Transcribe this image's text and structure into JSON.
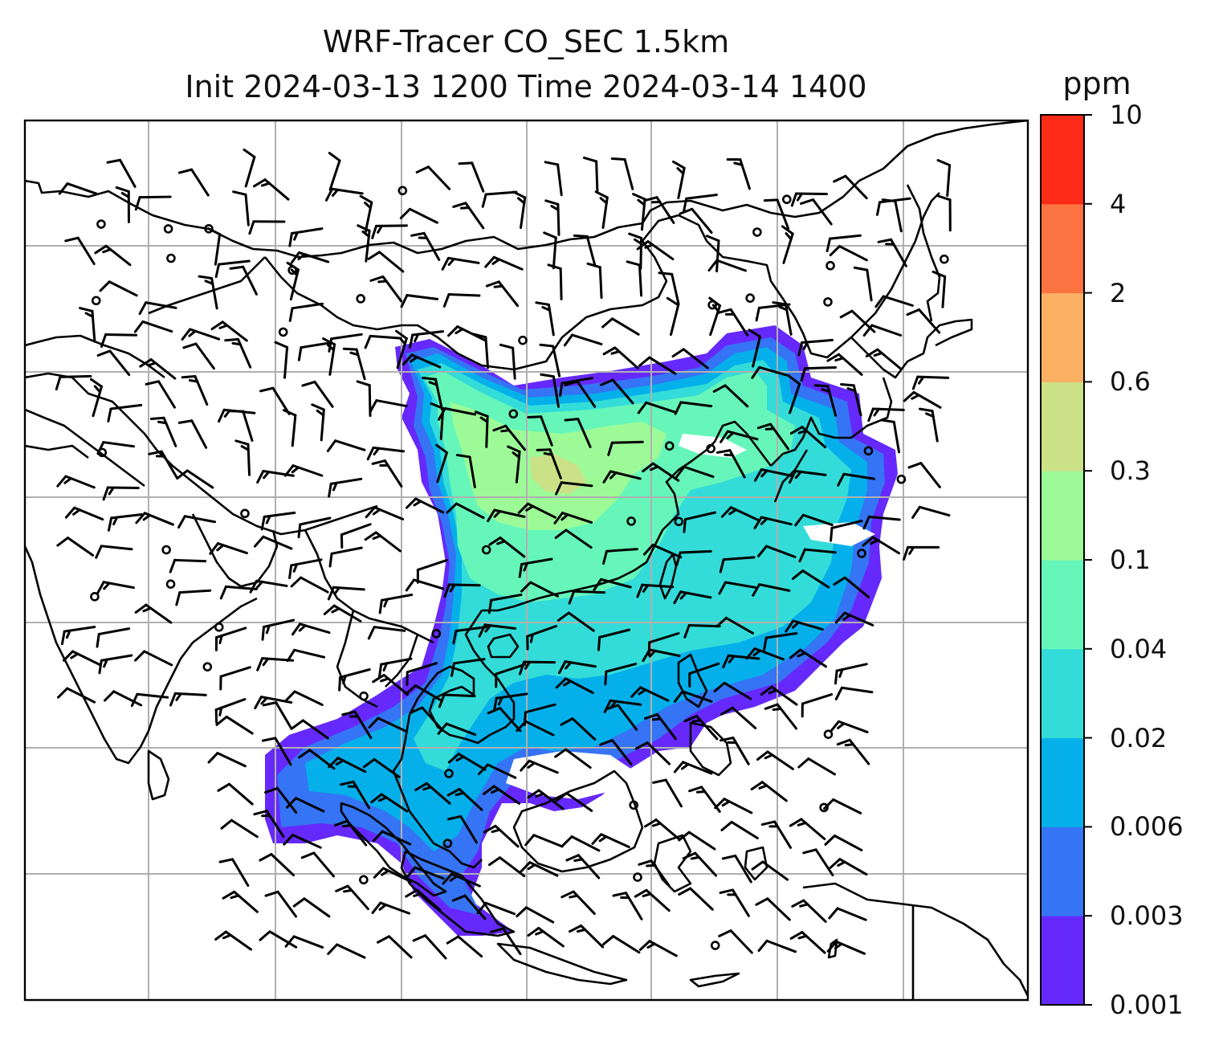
{
  "title": {
    "line1": "WRF-Tracer CO_SEC 1.5km",
    "line2": "Init 2024-03-13 1200 Time 2024-03-14 1400"
  },
  "colorbar": {
    "unit": "ppm",
    "levels": [
      "0.001",
      "0.003",
      "0.006",
      "0.02",
      "0.04",
      "0.1",
      "0.3",
      "0.6",
      "2",
      "4",
      "10"
    ],
    "colors": [
      "#6629fc",
      "#3574f4",
      "#05b0ea",
      "#33dcd8",
      "#66f6b9",
      "#9cfb97",
      "#cbe187",
      "#fcb063",
      "#fb7341",
      "#fb2b17"
    ]
  },
  "map": {
    "gridlines": true,
    "background": "#ffffff",
    "coastline_color": "#000000",
    "grid_color": "#b0b0b0"
  }
}
